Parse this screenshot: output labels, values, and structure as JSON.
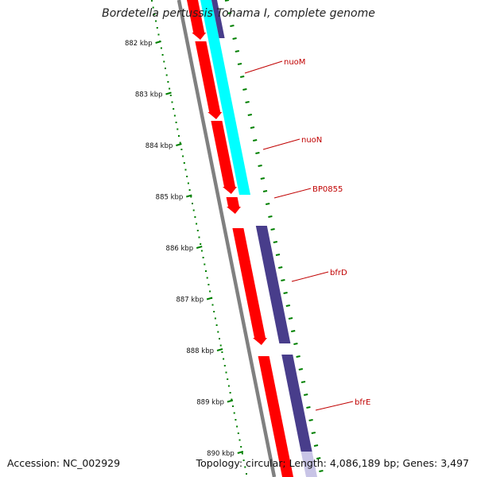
{
  "title": "Bordetella pertussis Tohama I, complete genome",
  "footer": {
    "accession": "Accession: NC_002929",
    "summary": "Topology: circular; Length: 4,086,189 bp; Genes: 3,497"
  },
  "kbp_labels": [
    "882 kbp",
    "883 kbp",
    "884 kbp",
    "885 kbp",
    "886 kbp",
    "887 kbp",
    "888 kbp",
    "889 kbp",
    "890 kbp"
  ],
  "genes": [
    {
      "name": "nuoM"
    },
    {
      "name": "nuoN"
    },
    {
      "name": "BP0855"
    },
    {
      "name": "bfrD"
    },
    {
      "name": "bfrE"
    }
  ],
  "colors": {
    "cds": "#ff0000",
    "cyan_track": "#00ffff",
    "purple_track": "#483d8b",
    "backbone": "#808080",
    "ticks": "#008000",
    "label": "#c00000"
  }
}
